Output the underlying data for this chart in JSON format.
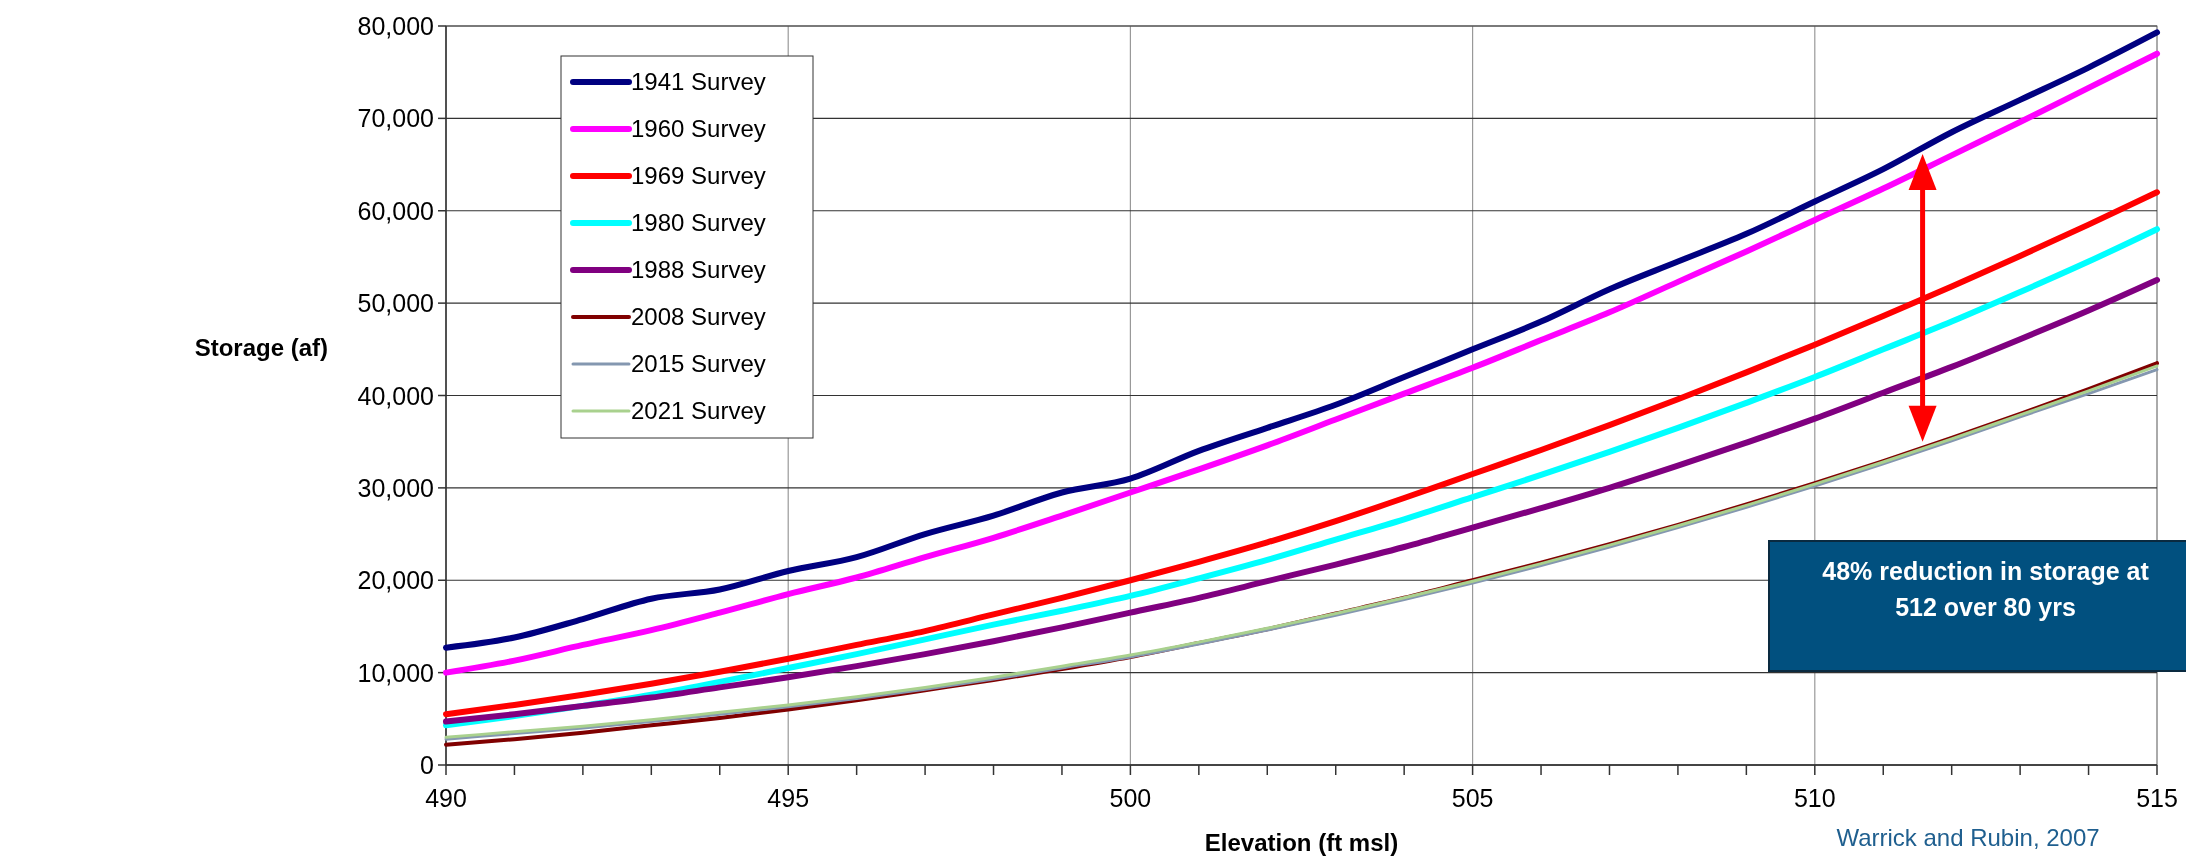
{
  "chart_data": {
    "type": "line",
    "xlabel": "Elevation (ft msl)",
    "ylabel": "Storage (af)",
    "x": [
      490,
      491,
      492,
      493,
      494,
      495,
      496,
      497,
      498,
      499,
      500,
      501,
      502,
      503,
      504,
      505,
      506,
      507,
      508,
      509,
      510,
      511,
      512,
      513,
      514,
      515
    ],
    "series": [
      {
        "name": "1941 Survey",
        "color": "#000080",
        "values": [
          12700,
          13800,
          15800,
          18000,
          19000,
          21000,
          22500,
          25000,
          27000,
          29500,
          31000,
          34000,
          36500,
          39000,
          42000,
          45000,
          48000,
          51500,
          54500,
          57500,
          61000,
          64500,
          68500,
          72000,
          75500,
          79300
        ]
      },
      {
        "name": "1960 Survey",
        "color": "#ff00ff",
        "values": [
          10000,
          11300,
          13000,
          14600,
          16500,
          18500,
          20300,
          22500,
          24600,
          27000,
          29500,
          32000,
          34600,
          37400,
          40200,
          43000,
          46000,
          49000,
          52300,
          55600,
          59000,
          62400,
          66000,
          69600,
          73300,
          77000
        ]
      },
      {
        "name": "1969 Survey",
        "color": "#ff0000",
        "values": [
          5500,
          6500,
          7600,
          8800,
          10100,
          11500,
          13000,
          14500,
          16300,
          18100,
          20000,
          22000,
          24100,
          26400,
          28900,
          31500,
          34100,
          36800,
          39600,
          42500,
          45500,
          48600,
          51800,
          55100,
          58500,
          62000
        ]
      },
      {
        "name": "1980 Survey",
        "color": "#00ffff",
        "values": [
          4300,
          5300,
          6400,
          7600,
          9000,
          10500,
          12000,
          13600,
          15200,
          16700,
          18300,
          20200,
          22200,
          24400,
          26600,
          29000,
          31400,
          33900,
          36500,
          39200,
          42000,
          45000,
          48000,
          51200,
          54500,
          58000
        ]
      },
      {
        "name": "1988 Survey",
        "color": "#800080",
        "values": [
          4700,
          5500,
          6400,
          7300,
          8400,
          9500,
          10700,
          12000,
          13400,
          14900,
          16500,
          18100,
          19900,
          21700,
          23600,
          25700,
          27800,
          30000,
          32400,
          34900,
          37500,
          40300,
          43100,
          46100,
          49200,
          52500
        ]
      },
      {
        "name": "2008 Survey",
        "color": "#800000",
        "values": [
          2200,
          2800,
          3500,
          4300,
          5100,
          6000,
          7000,
          8100,
          9200,
          10400,
          11700,
          13200,
          14700,
          16400,
          18100,
          20000,
          21900,
          23900,
          26000,
          28200,
          30500,
          32900,
          35400,
          38000,
          40700,
          43500
        ]
      },
      {
        "name": "2015 Survey",
        "color": "#8497b0",
        "values": [
          2800,
          3400,
          4000,
          4700,
          5500,
          6300,
          7200,
          8200,
          9300,
          10500,
          11700,
          13100,
          14600,
          16200,
          17900,
          19700,
          21600,
          23600,
          25700,
          27900,
          30200,
          32600,
          35100,
          37700,
          40200,
          42800
        ]
      },
      {
        "name": "2021 Survey",
        "color": "#a9d18e",
        "values": [
          3000,
          3600,
          4200,
          4900,
          5700,
          6500,
          7400,
          8400,
          9500,
          10700,
          11900,
          13300,
          14800,
          16400,
          18100,
          19900,
          21800,
          23800,
          25900,
          28100,
          30400,
          32800,
          35300,
          37900,
          40500,
          43200
        ]
      }
    ],
    "xlim": [
      490,
      515
    ],
    "xticks": [
      490,
      {
        "value": 491,
        "label": null
      },
      {
        "value": 492,
        "label": null
      },
      {
        "value": 493,
        "label": null
      },
      {
        "value": 494,
        "label": null
      },
      495,
      {
        "value": 496,
        "label": null
      },
      {
        "value": 497,
        "label": null
      },
      {
        "value": 498,
        "label": null
      },
      {
        "value": 499,
        "label": null
      },
      500,
      {
        "value": 501,
        "label": null
      },
      {
        "value": 502,
        "label": null
      },
      {
        "value": 503,
        "label": null
      },
      {
        "value": 504,
        "label": null
      },
      505,
      {
        "value": 506,
        "label": null
      },
      {
        "value": 507,
        "label": null
      },
      {
        "value": 508,
        "label": null
      },
      {
        "value": 509,
        "label": null
      },
      510,
      {
        "value": 511,
        "label": null
      },
      {
        "value": 512,
        "label": null
      },
      {
        "value": 513,
        "label": null
      },
      {
        "value": 514,
        "label": null
      },
      515
    ],
    "ylim": [
      0,
      80000
    ],
    "yticks": [
      {
        "value": 0,
        "label": "0"
      },
      {
        "value": 10000,
        "label": "10,000"
      },
      {
        "value": 20000,
        "label": "20,000"
      },
      {
        "value": 30000,
        "label": "30,000"
      },
      {
        "value": 40000,
        "label": "40,000"
      },
      {
        "value": 50000,
        "label": "50,000"
      },
      {
        "value": 60000,
        "label": "60,000"
      },
      {
        "value": 70000,
        "label": "70,000"
      },
      {
        "value": 80000,
        "label": "80,000"
      }
    ],
    "grid": true,
    "legend": "top left",
    "marker": "none",
    "line_style": "solid",
    "annotations": [
      "48% reduction in storage at 512 over 80 yrs",
      "Warrick and Rubin, 2007"
    ]
  }
}
